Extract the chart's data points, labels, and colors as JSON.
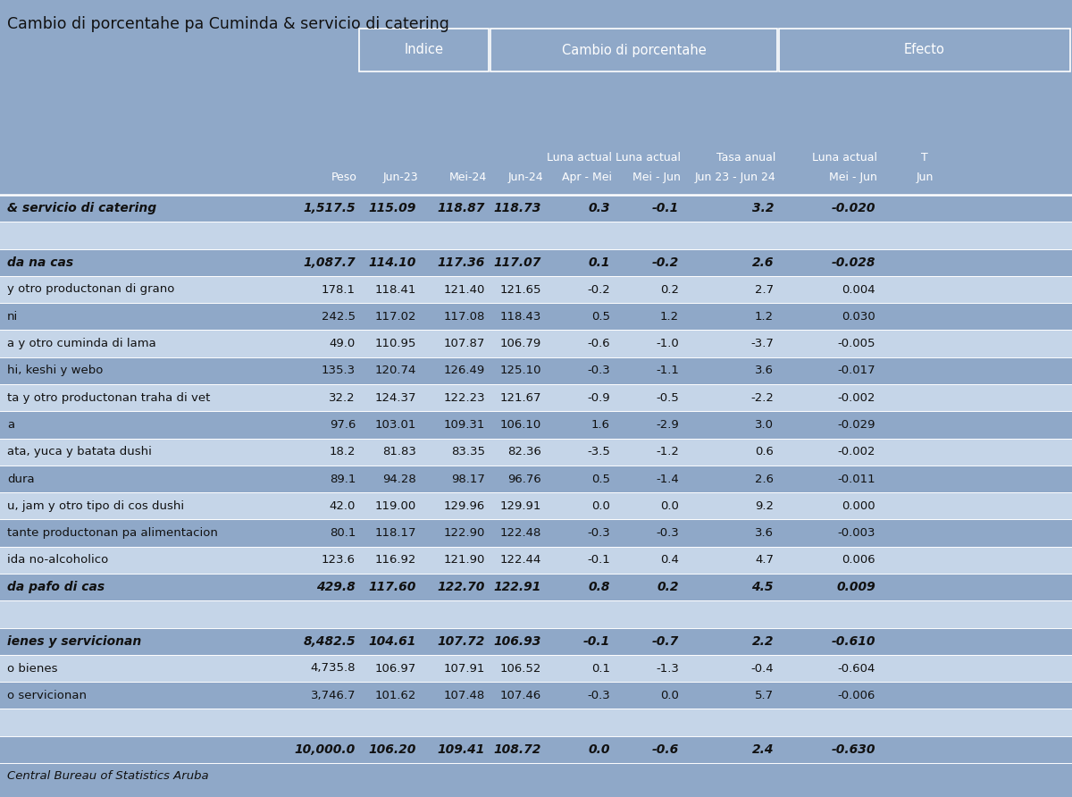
{
  "title": "Cambio di porcentahe pa Cuminda & servicio di catering",
  "bg_color": "#8FA8C8",
  "row_bg_dark": "#8FA8C8",
  "row_bg_light": "#C5D5E8",
  "footer": "Central Bureau of Statistics Aruba",
  "rows": [
    {
      "cat": "& servicio di catering",
      "bold": true,
      "peso": "1,517.5",
      "jun23": "115.09",
      "mei24": "118.87",
      "jun24": "118.73",
      "apr_mei": "0.3",
      "mei_jun": "-0.1",
      "anual": "3.2",
      "efecto": "-0.020",
      "bg": "dark"
    },
    {
      "cat": "",
      "bold": false,
      "peso": "",
      "jun23": "",
      "mei24": "",
      "jun24": "",
      "apr_mei": "",
      "mei_jun": "",
      "anual": "",
      "efecto": "",
      "bg": "light"
    },
    {
      "cat": "da na cas",
      "bold": true,
      "peso": "1,087.7",
      "jun23": "114.10",
      "mei24": "117.36",
      "jun24": "117.07",
      "apr_mei": "0.1",
      "mei_jun": "-0.2",
      "anual": "2.6",
      "efecto": "-0.028",
      "bg": "dark"
    },
    {
      "cat": "y otro productonan di grano",
      "bold": false,
      "peso": "178.1",
      "jun23": "118.41",
      "mei24": "121.40",
      "jun24": "121.65",
      "apr_mei": "-0.2",
      "mei_jun": "0.2",
      "anual": "2.7",
      "efecto": "0.004",
      "bg": "light"
    },
    {
      "cat": "ni",
      "bold": false,
      "peso": "242.5",
      "jun23": "117.02",
      "mei24": "117.08",
      "jun24": "118.43",
      "apr_mei": "0.5",
      "mei_jun": "1.2",
      "anual": "1.2",
      "efecto": "0.030",
      "bg": "dark"
    },
    {
      "cat": "a y otro cuminda di lama",
      "bold": false,
      "peso": "49.0",
      "jun23": "110.95",
      "mei24": "107.87",
      "jun24": "106.79",
      "apr_mei": "-0.6",
      "mei_jun": "-1.0",
      "anual": "-3.7",
      "efecto": "-0.005",
      "bg": "light"
    },
    {
      "cat": "hi, keshi y webo",
      "bold": false,
      "peso": "135.3",
      "jun23": "120.74",
      "mei24": "126.49",
      "jun24": "125.10",
      "apr_mei": "-0.3",
      "mei_jun": "-1.1",
      "anual": "3.6",
      "efecto": "-0.017",
      "bg": "dark"
    },
    {
      "cat": "ta y otro productonan traha di vet",
      "bold": false,
      "peso": "32.2",
      "jun23": "124.37",
      "mei24": "122.23",
      "jun24": "121.67",
      "apr_mei": "-0.9",
      "mei_jun": "-0.5",
      "anual": "-2.2",
      "efecto": "-0.002",
      "bg": "light"
    },
    {
      "cat": "a",
      "bold": false,
      "peso": "97.6",
      "jun23": "103.01",
      "mei24": "109.31",
      "jun24": "106.10",
      "apr_mei": "1.6",
      "mei_jun": "-2.9",
      "anual": "3.0",
      "efecto": "-0.029",
      "bg": "dark"
    },
    {
      "cat": "ata, yuca y batata dushi",
      "bold": false,
      "peso": "18.2",
      "jun23": "81.83",
      "mei24": "83.35",
      "jun24": "82.36",
      "apr_mei": "-3.5",
      "mei_jun": "-1.2",
      "anual": "0.6",
      "efecto": "-0.002",
      "bg": "light"
    },
    {
      "cat": "dura",
      "bold": false,
      "peso": "89.1",
      "jun23": "94.28",
      "mei24": "98.17",
      "jun24": "96.76",
      "apr_mei": "0.5",
      "mei_jun": "-1.4",
      "anual": "2.6",
      "efecto": "-0.011",
      "bg": "dark"
    },
    {
      "cat": "u, jam y otro tipo di cos dushi",
      "bold": false,
      "peso": "42.0",
      "jun23": "119.00",
      "mei24": "129.96",
      "jun24": "129.91",
      "apr_mei": "0.0",
      "mei_jun": "0.0",
      "anual": "9.2",
      "efecto": "0.000",
      "bg": "light"
    },
    {
      "cat": "tante productonan pa alimentacion",
      "bold": false,
      "peso": "80.1",
      "jun23": "118.17",
      "mei24": "122.90",
      "jun24": "122.48",
      "apr_mei": "-0.3",
      "mei_jun": "-0.3",
      "anual": "3.6",
      "efecto": "-0.003",
      "bg": "dark"
    },
    {
      "cat": "ida no-alcoholico",
      "bold": false,
      "peso": "123.6",
      "jun23": "116.92",
      "mei24": "121.90",
      "jun24": "122.44",
      "apr_mei": "-0.1",
      "mei_jun": "0.4",
      "anual": "4.7",
      "efecto": "0.006",
      "bg": "light"
    },
    {
      "cat": "da pafo di cas",
      "bold": true,
      "peso": "429.8",
      "jun23": "117.60",
      "mei24": "122.70",
      "jun24": "122.91",
      "apr_mei": "0.8",
      "mei_jun": "0.2",
      "anual": "4.5",
      "efecto": "0.009",
      "bg": "dark"
    },
    {
      "cat": "",
      "bold": false,
      "peso": "",
      "jun23": "",
      "mei24": "",
      "jun24": "",
      "apr_mei": "",
      "mei_jun": "",
      "anual": "",
      "efecto": "",
      "bg": "light"
    },
    {
      "cat": "ienes y servicionan",
      "bold": true,
      "peso": "8,482.5",
      "jun23": "104.61",
      "mei24": "107.72",
      "jun24": "106.93",
      "apr_mei": "-0.1",
      "mei_jun": "-0.7",
      "anual": "2.2",
      "efecto": "-0.610",
      "bg": "dark"
    },
    {
      "cat": "o bienes",
      "bold": false,
      "peso": "4,735.8",
      "jun23": "106.97",
      "mei24": "107.91",
      "jun24": "106.52",
      "apr_mei": "0.1",
      "mei_jun": "-1.3",
      "anual": "-0.4",
      "efecto": "-0.604",
      "bg": "light"
    },
    {
      "cat": "o servicionan",
      "bold": false,
      "peso": "3,746.7",
      "jun23": "101.62",
      "mei24": "107.48",
      "jun24": "107.46",
      "apr_mei": "-0.3",
      "mei_jun": "0.0",
      "anual": "5.7",
      "efecto": "-0.006",
      "bg": "dark"
    },
    {
      "cat": "",
      "bold": false,
      "peso": "",
      "jun23": "",
      "mei24": "",
      "jun24": "",
      "apr_mei": "",
      "mei_jun": "",
      "anual": "",
      "efecto": "",
      "bg": "light"
    },
    {
      "cat": "",
      "bold": true,
      "peso": "10,000.0",
      "jun23": "106.20",
      "mei24": "109.41",
      "jun24": "108.72",
      "apr_mei": "0.0",
      "mei_jun": "-0.6",
      "anual": "2.4",
      "efecto": "-0.630",
      "bg": "dark"
    }
  ]
}
